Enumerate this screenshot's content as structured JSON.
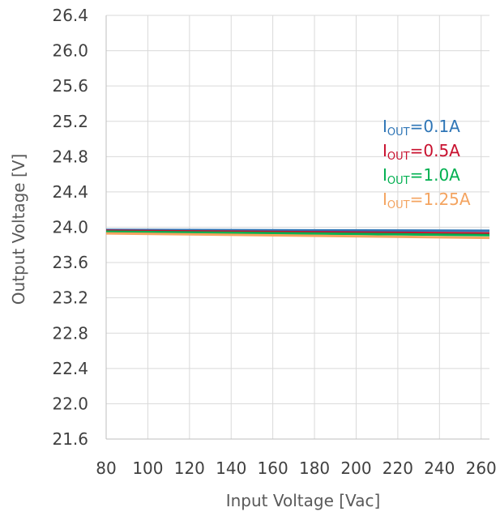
{
  "chart_data": {
    "type": "line",
    "xlabel": "Input Voltage [Vac]",
    "ylabel": "Output Voltage [V]",
    "xlim": [
      80,
      264
    ],
    "ylim": [
      21.6,
      26.4
    ],
    "x_ticks": [
      "80",
      "100",
      "120",
      "140",
      "160",
      "180",
      "200",
      "220",
      "240",
      "260"
    ],
    "y_ticks": [
      "26.4",
      "26.0",
      "25.6",
      "25.2",
      "24.8",
      "24.4",
      "24.0",
      "23.6",
      "23.2",
      "22.8",
      "22.4",
      "22.0",
      "21.6"
    ],
    "grid": true,
    "legend_position": "right",
    "series": [
      {
        "name": "IOUT=0.1A",
        "label_main": "I",
        "label_sub": "OUT",
        "label_rest": "=0.1A",
        "color": "#2E75B6",
        "x": [
          80,
          264
        ],
        "y": [
          23.97,
          23.96
        ]
      },
      {
        "name": "IOUT=0.5A",
        "label_main": "I",
        "label_sub": "OUT",
        "label_rest": "=0.5A",
        "color": "#C8102E",
        "x": [
          80,
          264
        ],
        "y": [
          23.96,
          23.93
        ]
      },
      {
        "name": "IOUT=1.0A",
        "label_main": "I",
        "label_sub": "OUT",
        "label_rest": "=1.0A",
        "color": "#00B050",
        "x": [
          80,
          264
        ],
        "y": [
          23.95,
          23.91
        ]
      },
      {
        "name": "IOUT=1.25A",
        "label_main": "I",
        "label_sub": "OUT",
        "label_rest": "=1.25A",
        "color": "#F4A460",
        "x": [
          80,
          264
        ],
        "y": [
          23.93,
          23.88
        ]
      }
    ]
  }
}
